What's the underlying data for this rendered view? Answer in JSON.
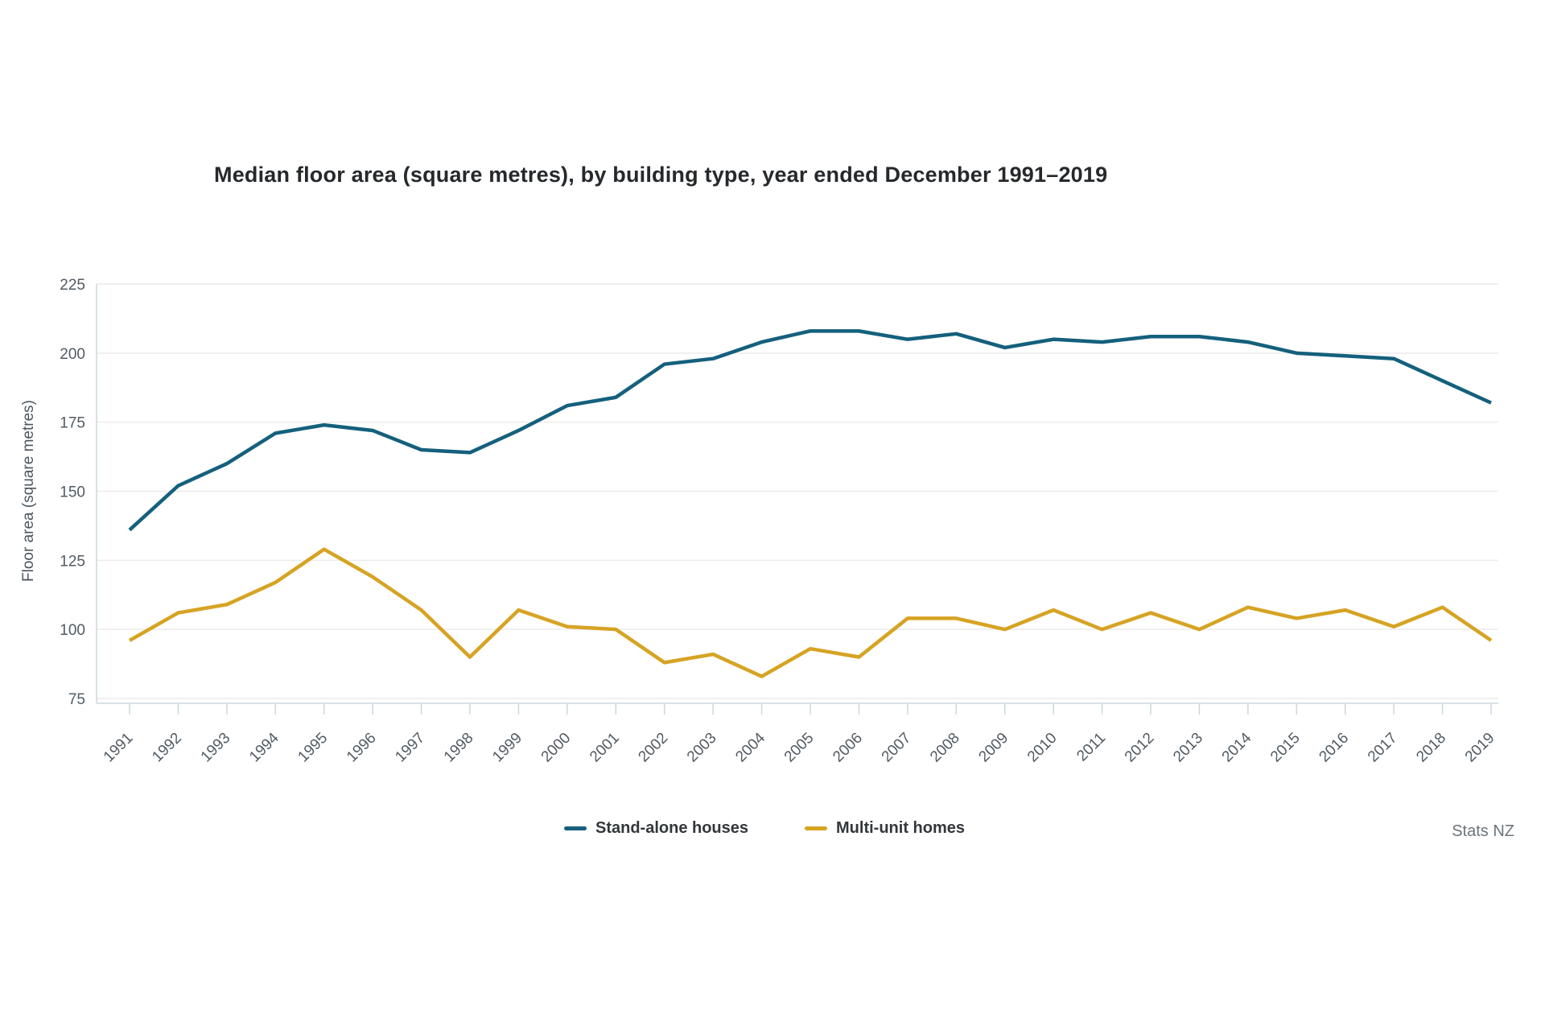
{
  "title": "Median floor area (square metres), by building type, year ended December 1991–2019",
  "source": "Stats NZ",
  "colors": {
    "stand_alone": "#14607d",
    "multi_unit": "#d6a323",
    "gridline": "#ebebeb",
    "axis": "#ccd7dd",
    "tick_label": "#525b63"
  },
  "chart_data": {
    "type": "line",
    "title": "Median floor area (square metres), by building type, year ended December 1991–2019",
    "xlabel": "",
    "ylabel": "Floor area (square metres)",
    "ylim": [
      75,
      225
    ],
    "yticks": [
      75,
      100,
      125,
      150,
      175,
      200,
      225
    ],
    "grid": true,
    "legend_position": "bottom",
    "source": "Stats NZ",
    "x": [
      1991,
      1992,
      1993,
      1994,
      1995,
      1996,
      1997,
      1998,
      1999,
      2000,
      2001,
      2002,
      2003,
      2004,
      2005,
      2006,
      2007,
      2008,
      2009,
      2010,
      2011,
      2012,
      2013,
      2014,
      2015,
      2016,
      2017,
      2018,
      2019
    ],
    "series": [
      {
        "name": "Stand-alone houses",
        "color": "#14607d",
        "values": [
          136,
          152,
          160,
          171,
          174,
          172,
          165,
          164,
          172,
          181,
          184,
          196,
          198,
          204,
          208,
          208,
          205,
          207,
          202,
          205,
          204,
          206,
          206,
          204,
          200,
          199,
          198,
          190,
          182
        ]
      },
      {
        "name": "Multi-unit homes",
        "color": "#d6a323",
        "values": [
          96,
          106,
          109,
          117,
          129,
          119,
          107,
          90,
          107,
          101,
          100,
          88,
          91,
          83,
          93,
          90,
          104,
          104,
          100,
          107,
          100,
          106,
          100,
          108,
          104,
          107,
          101,
          108,
          96
        ]
      }
    ]
  }
}
